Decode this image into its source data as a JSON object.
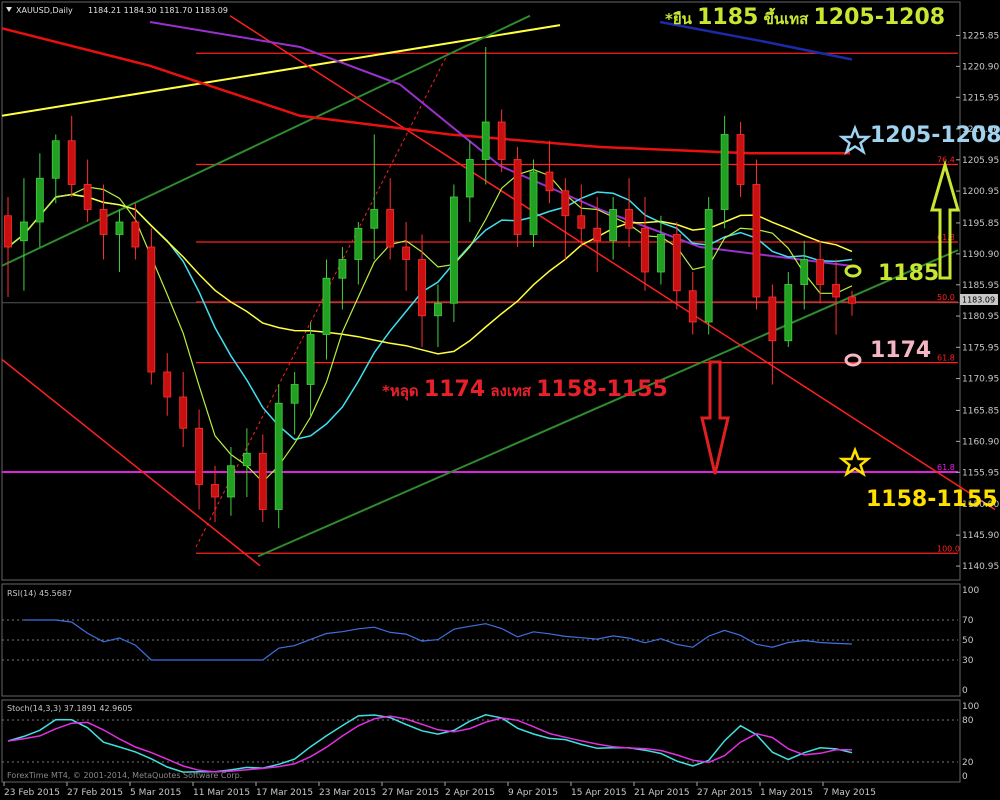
{
  "header": {
    "symbol": "XAUUSD,Daily",
    "ohlc": "1184.21 1184.30 1181.70 1183.09"
  },
  "chart_data": {
    "type": "candlestick",
    "ylim": [
      1140,
      1228
    ],
    "y_ticks": [
      "1225.85",
      "1220.90",
      "1215.95",
      "1210.90",
      "1205.95",
      "1200.95",
      "1195.85",
      "1190.90",
      "1185.95",
      "1180.95",
      "1175.95",
      "1170.95",
      "1165.85",
      "1160.90",
      "1155.95",
      "1150.90",
      "1145.90",
      "1140.95"
    ],
    "x_labels": [
      "23 Feb 2015",
      "27 Feb 2015",
      "5 Mar 2015",
      "11 Mar 2015",
      "17 Mar 2015",
      "23 Mar 2015",
      "27 Mar 2015",
      "2 Apr 2015",
      "9 Apr 2015",
      "15 Apr 2015",
      "21 Apr 2015",
      "27 Apr 2015",
      "1 May 2015",
      "7 May 2015"
    ],
    "current_price": "1183.09",
    "fib_levels": [
      {
        "label": "76.4",
        "price": 1205.2
      },
      {
        "label": "61.8",
        "price": 1192.8
      },
      {
        "label": "50.0",
        "price": 1183.2
      },
      {
        "label": "61.8",
        "price": 1173.5
      },
      {
        "label": "61.8",
        "price": 1156.0
      },
      {
        "label": "100.0",
        "price": 1143.0
      },
      {
        "label": "",
        "price": 1223.0
      }
    ],
    "candles": [
      [
        1197,
        1200,
        1184,
        1192
      ],
      [
        1193,
        1203,
        1185,
        1196
      ],
      [
        1196,
        1207,
        1192,
        1203
      ],
      [
        1203,
        1210,
        1199,
        1209
      ],
      [
        1209,
        1213,
        1200,
        1202
      ],
      [
        1202,
        1206,
        1196,
        1198
      ],
      [
        1198,
        1202,
        1190,
        1194
      ],
      [
        1194,
        1198,
        1188,
        1196
      ],
      [
        1196,
        1199,
        1190,
        1192
      ],
      [
        1192,
        1195,
        1170,
        1172
      ],
      [
        1172,
        1175,
        1165,
        1168
      ],
      [
        1168,
        1172,
        1160,
        1163
      ],
      [
        1163,
        1166,
        1150,
        1154
      ],
      [
        1154,
        1157,
        1148,
        1152
      ],
      [
        1152,
        1160,
        1149,
        1157
      ],
      [
        1157,
        1163,
        1152,
        1159
      ],
      [
        1159,
        1162,
        1148,
        1150
      ],
      [
        1150,
        1170,
        1147,
        1167
      ],
      [
        1167,
        1172,
        1162,
        1170
      ],
      [
        1170,
        1180,
        1165,
        1178
      ],
      [
        1178,
        1190,
        1174,
        1187
      ],
      [
        1187,
        1192,
        1182,
        1190
      ],
      [
        1190,
        1196,
        1186,
        1195
      ],
      [
        1195,
        1210,
        1190,
        1198
      ],
      [
        1198,
        1203,
        1190,
        1192
      ],
      [
        1192,
        1196,
        1185,
        1190
      ],
      [
        1190,
        1194,
        1176,
        1181
      ],
      [
        1181,
        1186,
        1176,
        1183
      ],
      [
        1183,
        1202,
        1180,
        1200
      ],
      [
        1200,
        1209,
        1196,
        1206
      ],
      [
        1206,
        1224,
        1202,
        1212
      ],
      [
        1212,
        1214,
        1204,
        1206
      ],
      [
        1206,
        1208,
        1192,
        1194
      ],
      [
        1194,
        1206,
        1192,
        1204
      ],
      [
        1204,
        1209,
        1199,
        1201
      ],
      [
        1201,
        1203,
        1190,
        1197
      ],
      [
        1197,
        1202,
        1192,
        1195
      ],
      [
        1195,
        1200,
        1188,
        1193
      ],
      [
        1193,
        1200,
        1190,
        1198
      ],
      [
        1198,
        1203,
        1192,
        1195
      ],
      [
        1195,
        1200,
        1185,
        1188
      ],
      [
        1188,
        1197,
        1186,
        1194
      ],
      [
        1194,
        1196,
        1182,
        1185
      ],
      [
        1185,
        1188,
        1178,
        1180
      ],
      [
        1180,
        1200,
        1178,
        1198
      ],
      [
        1198,
        1213,
        1195,
        1210
      ],
      [
        1210,
        1212,
        1200,
        1202
      ],
      [
        1202,
        1206,
        1182,
        1184
      ],
      [
        1184,
        1186,
        1170,
        1177
      ],
      [
        1177,
        1188,
        1176,
        1186
      ],
      [
        1186,
        1193,
        1182,
        1190
      ],
      [
        1190,
        1193,
        1183,
        1186
      ],
      [
        1186,
        1190,
        1178,
        1184
      ],
      [
        1184,
        1185,
        1181,
        1183
      ]
    ],
    "indicators": {
      "rsi": {
        "label": "RSI(14) 45.5687",
        "levels": [
          70,
          50,
          30
        ],
        "axis": [
          "100",
          "70",
          "50",
          "30",
          "0"
        ]
      },
      "stoch": {
        "label": "Stoch(14,3,3) 37.1891 42.9605",
        "axis": [
          "100",
          "80",
          "20",
          "0"
        ]
      }
    }
  },
  "annotations": {
    "top": "*ยืน 1185 ขึ้นเทส 1205-1208",
    "top_parts": [
      "*ยืน ",
      "1185",
      " ขึ้นเทส ",
      "1205-1208"
    ],
    "label_1205": "1205-1208",
    "label_1185": "1185",
    "label_1174": "1174",
    "bottom_parts": [
      "*หลุด ",
      "1174",
      " ลงเทส ",
      "1158-1155"
    ],
    "label_1158": "1158-1155"
  },
  "footer": "ForexTime MT4, © 2001-2014, MetaQuotes Software Corp."
}
